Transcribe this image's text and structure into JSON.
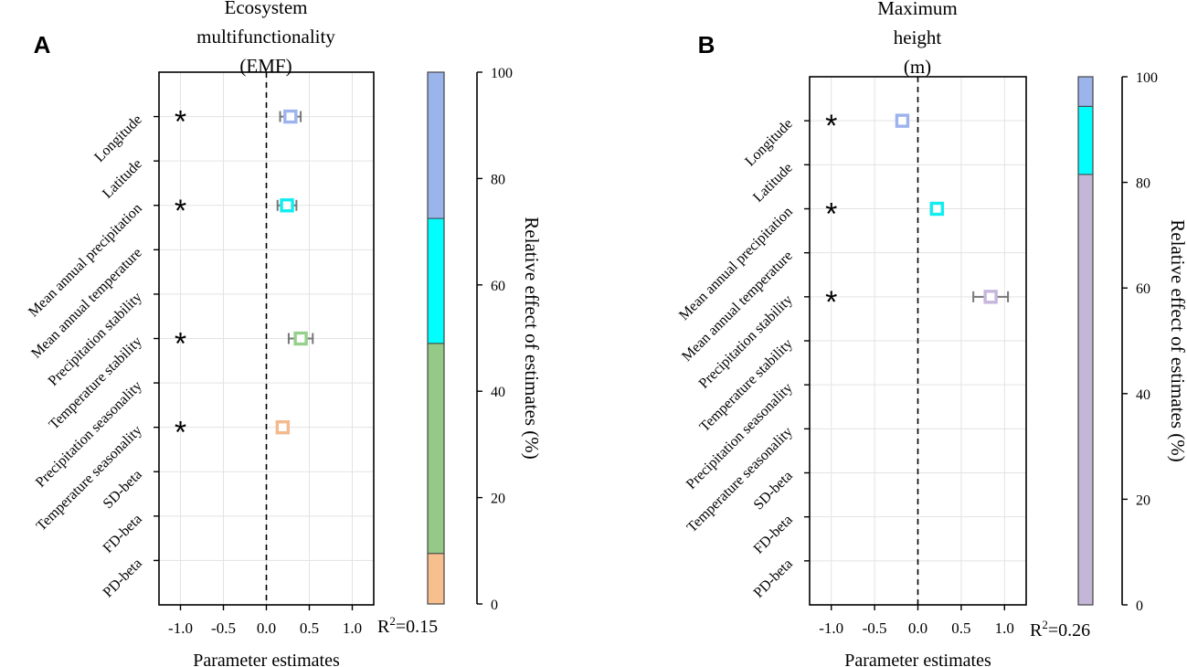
{
  "chart_data": [
    {
      "type": "scatter",
      "panel_label": "A",
      "title_lines": [
        "Ecosystem",
        "multifunctionality",
        "(EMF)"
      ],
      "xlabel": "Parameter estimates",
      "xlim": [
        -1.25,
        1.25
      ],
      "xticks": [
        -1.0,
        -0.5,
        0.0,
        0.5,
        1.0
      ],
      "xtick_labels": [
        "-1.0",
        "-0.5",
        "0.0",
        "0.5",
        "1.0"
      ],
      "categories": [
        "Longitude",
        "Latitude",
        "Mean annual precipitation",
        "Mean annual temperature",
        "Precipitation stability",
        "Temperature stability",
        "Precipitation seasonality",
        "Temperature seasonality",
        "SD-beta",
        "FD-beta",
        "PD-beta"
      ],
      "points": [
        {
          "category": "Longitude",
          "estimate": 0.28,
          "lower": 0.16,
          "upper": 0.4,
          "significant": true,
          "color": "#9DB3EE"
        },
        {
          "category": "Mean annual precipitation",
          "estimate": 0.24,
          "lower": 0.13,
          "upper": 0.35,
          "significant": true,
          "color": "#11EDF0"
        },
        {
          "category": "Temperature stability",
          "estimate": 0.4,
          "lower": 0.26,
          "upper": 0.54,
          "significant": true,
          "color": "#97CF8C"
        },
        {
          "category": "Temperature seasonality",
          "estimate": 0.19,
          "lower": 0.13,
          "upper": 0.25,
          "significant": true,
          "color": "#F4B98C"
        }
      ],
      "significance_marker": "*",
      "r2_label": "R",
      "r2_sup": "2",
      "r2_value": "=0.15",
      "relative_effect": {
        "ylabel": "Relative effect of estimates (%)",
        "ylim": [
          0,
          100
        ],
        "yticks": [
          0,
          20,
          40,
          60,
          80,
          100
        ],
        "segments": [
          {
            "name": "Temperature seasonality",
            "value": 9.5,
            "color": "#F8BF8E"
          },
          {
            "name": "Temperature stability",
            "value": 39.5,
            "color": "#95C987"
          },
          {
            "name": "Mean annual precipitation",
            "value": 23.5,
            "color": "#00FFFF"
          },
          {
            "name": "Longitude",
            "value": 27.5,
            "color": "#9BB4EC"
          }
        ]
      }
    },
    {
      "type": "scatter",
      "panel_label": "B",
      "title_lines": [
        "Maximum",
        "height",
        "(m)"
      ],
      "xlabel": "Parameter estimates",
      "xlim": [
        -1.25,
        1.25
      ],
      "xticks": [
        -1.0,
        -0.5,
        0.0,
        0.5,
        1.0
      ],
      "xtick_labels": [
        "-1.0",
        "-0.5",
        "0.0",
        "0.5",
        "1.0"
      ],
      "categories": [
        "Longitude",
        "Latitude",
        "Mean annual precipitation",
        "Mean annual temperature",
        "Precipitation stability",
        "Temperature stability",
        "Precipitation seasonality",
        "Temperature seasonality",
        "SD-beta",
        "FD-beta",
        "PD-beta"
      ],
      "points": [
        {
          "category": "Longitude",
          "estimate": -0.18,
          "lower": -0.22,
          "upper": -0.14,
          "significant": true,
          "color": "#9DB3EE"
        },
        {
          "category": "Mean annual precipitation",
          "estimate": 0.22,
          "lower": 0.15,
          "upper": 0.29,
          "significant": true,
          "color": "#11EDF0"
        },
        {
          "category": "Precipitation stability",
          "estimate": 0.84,
          "lower": 0.64,
          "upper": 1.04,
          "significant": true,
          "color": "#C6B6DC"
        }
      ],
      "significance_marker": "*",
      "r2_label": "R",
      "r2_sup": "2",
      "r2_value": "=0.26",
      "relative_effect": {
        "ylabel": "Relative effect of estimates (%)",
        "ylim": [
          0,
          100
        ],
        "yticks": [
          0,
          20,
          40,
          60,
          80,
          100
        ],
        "segments": [
          {
            "name": "Precipitation stability",
            "value": 81.5,
            "color": "#C3B6D6"
          },
          {
            "name": "Mean annual precipitation",
            "value": 12.9,
            "color": "#00FFFF"
          },
          {
            "name": "Longitude",
            "value": 5.6,
            "color": "#9BB4EC"
          }
        ]
      }
    }
  ]
}
